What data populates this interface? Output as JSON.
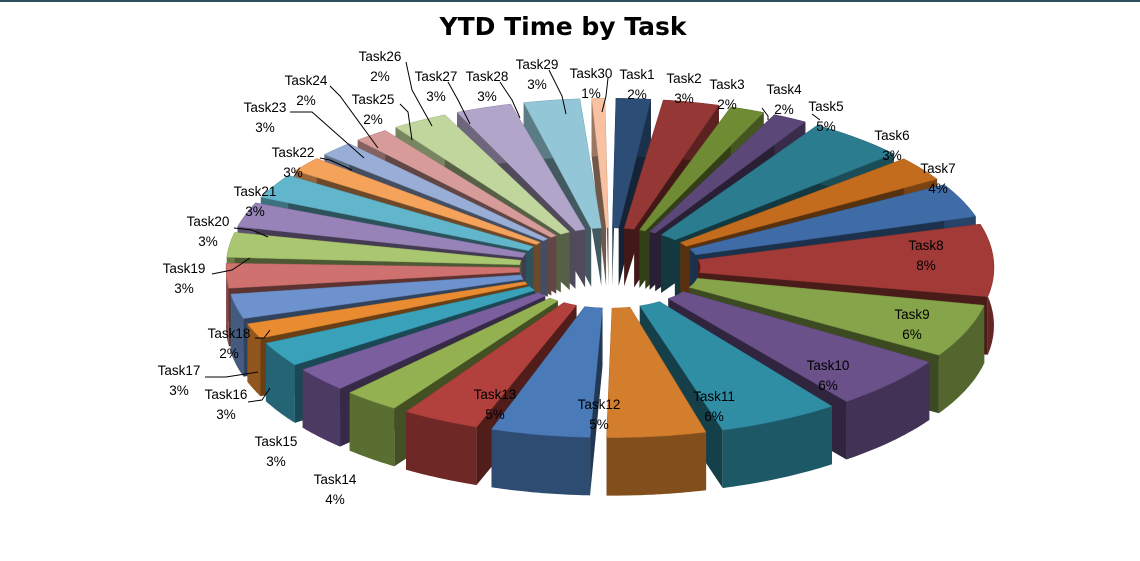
{
  "chart_data": {
    "type": "pie",
    "title": "YTD Time by Task",
    "style": "3d-exploded",
    "categories": [
      "Task1",
      "Task2",
      "Task3",
      "Task4",
      "Task5",
      "Task6",
      "Task7",
      "Task8",
      "Task9",
      "Task10",
      "Task11",
      "Task12",
      "Task13",
      "Task14",
      "Task15",
      "Task16",
      "Task17",
      "Task18",
      "Task19",
      "Task20",
      "Task21",
      "Task22",
      "Task23",
      "Task24",
      "Task25",
      "Task26",
      "Task27",
      "Task28",
      "Task29",
      "Task30"
    ],
    "values": [
      2,
      3,
      2,
      2,
      5,
      3,
      4,
      8,
      6,
      6,
      6,
      5,
      5,
      4,
      3,
      3,
      3,
      2,
      3,
      3,
      3,
      3,
      3,
      2,
      2,
      2,
      3,
      3,
      3,
      1
    ],
    "value_labels": [
      "2%",
      "3%",
      "2%",
      "2%",
      "5%",
      "3%",
      "4%",
      "8%",
      "6%",
      "6%",
      "6%",
      "5%",
      "5%",
      "4%",
      "3%",
      "3%",
      "3%",
      "2%",
      "3%",
      "3%",
      "3%",
      "3%",
      "3%",
      "2%",
      "2%",
      "2%",
      "3%",
      "3%",
      "3%",
      "1%"
    ],
    "colors": [
      "#2c4d75",
      "#953735",
      "#6f8b34",
      "#5c4779",
      "#2b7c8e",
      "#c36c1e",
      "#3f6ca6",
      "#a23b38",
      "#86a44a",
      "#6b518a",
      "#2f8ea4",
      "#d27e2d",
      "#4a7ab8",
      "#b2403d",
      "#93b150",
      "#7a5e9e",
      "#3aa1bb",
      "#e98b30",
      "#6d92cd",
      "#cf726f",
      "#a9c670",
      "#9883b8",
      "#61b6cc",
      "#f5a25a",
      "#98aed6",
      "#d79c9a",
      "#c0d69c",
      "#b1a5c9",
      "#93c6d6",
      "#f8c2a2"
    ],
    "legend": "none"
  }
}
